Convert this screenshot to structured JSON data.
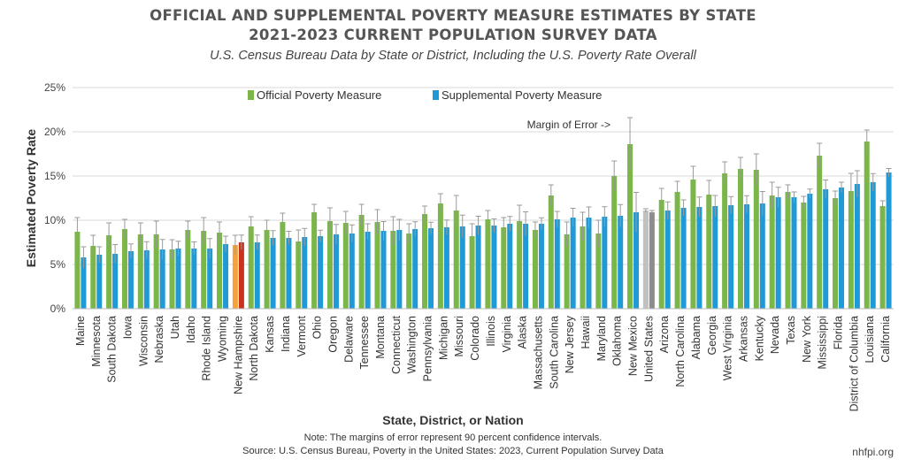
{
  "header": {
    "title_line1": "OFFICIAL AND SUPPLEMENTAL POVERTY MEASURE ESTIMATES BY STATE",
    "title_line2": "2021-2023 CURRENT POPULATION SURVEY DATA",
    "subtitle": "U.S. Census Bureau Data by State or District, Including the U.S. Poverty Rate Overall"
  },
  "footer": {
    "note": "Note: The margins of error represent 90 percent confidence intervals.",
    "source": "Source: U.S. Census Bureau, Poverty in the United States: 2023, Current Population Survey Data",
    "brand": "nhfpi.org"
  },
  "colors": {
    "official": "#7ab648",
    "supplemental": "#1f9ad6",
    "highlight_official": "#f5a23a",
    "highlight_supplemental": "#c8321e",
    "us_official": "#c0c0c0",
    "us_supplemental": "#8c8c8c",
    "error_bar": "#9a9a9a",
    "grid": "#d9d9d9"
  },
  "chart_data": {
    "type": "bar",
    "xlabel": "State, District, or Nation",
    "ylabel": "Estimated Poverty Rate",
    "ylim": [
      0,
      25
    ],
    "yticks": [
      "0%",
      "5%",
      "10%",
      "15%",
      "20%",
      "25%"
    ],
    "ytick_values": [
      0,
      5,
      10,
      15,
      20,
      25
    ],
    "grid": true,
    "legend_position": "top-center",
    "annotation": "Margin of Error ->",
    "highlight": {
      "New Hampshire": "state",
      "United States": "nation"
    },
    "categories": [
      "Maine",
      "Minnesota",
      "South Dakota",
      "Iowa",
      "Wisconsin",
      "Nebraska",
      "Utah",
      "Idaho",
      "Rhode Island",
      "Wyoming",
      "New Hampshire",
      "North Dakota",
      "Kansas",
      "Indiana",
      "Vermont",
      "Ohio",
      "Oregon",
      "Delaware",
      "Tennessee",
      "Montana",
      "Connecticut",
      "Washington",
      "Pennsylvania",
      "Michigan",
      "Missouri",
      "Colorado",
      "Illinois",
      "Virginia",
      "Alaska",
      "Massachusetts",
      "South Carolina",
      "New Jersey",
      "Hawaii",
      "Maryland",
      "Oklahoma",
      "New Mexico",
      "United States",
      "Arizona",
      "North Carolina",
      "Alabama",
      "Georgia",
      "West Virginia",
      "Arkansas",
      "Kentucky",
      "Nevada",
      "Texas",
      "New York",
      "Mississippi",
      "Florida",
      "District of Columbia",
      "Louisiana",
      "California"
    ],
    "series": [
      {
        "name": "Official Poverty Measure",
        "values": [
          8.7,
          7.1,
          8.3,
          9.0,
          8.4,
          8.4,
          6.7,
          8.9,
          8.8,
          8.6,
          7.2,
          9.3,
          8.9,
          9.8,
          7.6,
          10.9,
          9.9,
          9.7,
          10.6,
          9.8,
          8.8,
          8.5,
          10.7,
          11.9,
          11.1,
          8.2,
          10.1,
          9.2,
          9.9,
          8.9,
          12.8,
          8.4,
          9.3,
          8.5,
          15.0,
          18.6,
          11.1,
          12.3,
          13.2,
          14.6,
          12.9,
          15.3,
          15.8,
          15.7,
          12.8,
          13.2,
          12.0,
          17.3,
          12.5,
          13.3,
          18.9,
          11.6
        ],
        "moe": [
          1.6,
          1.2,
          1.4,
          1.1,
          1.3,
          1.5,
          1.1,
          1.0,
          1.5,
          1.2,
          1.1,
          1.1,
          1.1,
          1.0,
          1.3,
          0.9,
          1.5,
          1.3,
          1.2,
          1.4,
          1.6,
          1.1,
          0.9,
          1.1,
          1.7,
          1.4,
          1.0,
          1.1,
          1.8,
          0.9,
          1.2,
          1.4,
          1.6,
          1.5,
          1.7,
          3.0,
          0.2,
          1.3,
          1.2,
          1.5,
          1.6,
          1.3,
          1.3,
          1.8,
          1.5,
          0.8,
          0.7,
          1.4,
          0.8,
          2.0,
          1.3,
          0.6
        ]
      },
      {
        "name": "Supplemental Poverty Measure",
        "values": [
          5.8,
          6.1,
          6.2,
          6.5,
          6.6,
          6.7,
          6.8,
          6.8,
          6.8,
          7.3,
          7.5,
          7.5,
          8.0,
          8.0,
          8.1,
          8.2,
          8.4,
          8.5,
          8.7,
          8.8,
          8.9,
          9.0,
          9.1,
          9.2,
          9.3,
          9.4,
          9.4,
          9.6,
          9.6,
          9.6,
          10.1,
          10.3,
          10.3,
          10.4,
          10.5,
          10.9,
          10.9,
          11.1,
          11.4,
          11.5,
          11.6,
          11.7,
          11.8,
          11.9,
          12.6,
          12.6,
          13.0,
          13.5,
          13.7,
          14.1,
          14.3,
          15.4
        ]
      }
    ]
  }
}
